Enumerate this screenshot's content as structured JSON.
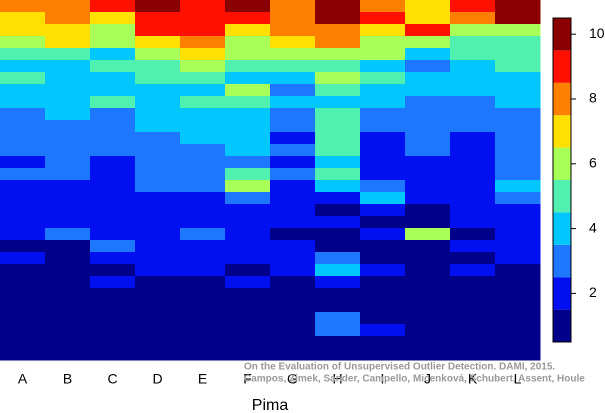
{
  "chart_data": {
    "type": "heatmap",
    "xlabel": "Pima",
    "categories": [
      "A",
      "B",
      "C",
      "D",
      "E",
      "F",
      "G",
      "H",
      "I",
      "J",
      "K",
      "L"
    ],
    "values": [
      [
        8,
        7,
        7,
        6,
        5,
        4,
        5,
        4,
        4,
        3,
        3,
        3,
        3,
        2,
        3,
        2,
        2,
        2,
        2,
        2,
        1,
        2,
        1,
        1,
        1,
        1,
        1,
        1,
        1,
        1
      ],
      [
        8,
        8,
        7,
        7,
        5,
        4,
        4,
        4,
        4,
        4,
        3,
        3,
        3,
        3,
        3,
        2,
        2,
        2,
        2,
        3,
        1,
        1,
        1,
        1,
        1,
        1,
        1,
        1,
        1,
        1
      ],
      [
        9,
        7,
        6,
        6,
        4,
        5,
        4,
        4,
        5,
        3,
        3,
        3,
        3,
        2,
        2,
        2,
        2,
        2,
        2,
        2,
        3,
        2,
        1,
        2,
        1,
        1,
        1,
        1,
        1,
        1
      ],
      [
        10,
        9,
        9,
        7,
        6,
        5,
        5,
        4,
        4,
        4,
        4,
        3,
        3,
        3,
        3,
        3,
        2,
        2,
        2,
        2,
        2,
        2,
        2,
        1,
        1,
        1,
        1,
        1,
        1,
        1
      ],
      [
        9,
        9,
        9,
        8,
        7,
        6,
        5,
        4,
        5,
        4,
        4,
        4,
        3,
        3,
        3,
        3,
        2,
        2,
        2,
        3,
        2,
        2,
        2,
        1,
        1,
        1,
        1,
        1,
        1,
        1
      ],
      [
        10,
        9,
        7,
        6,
        6,
        5,
        4,
        6,
        5,
        4,
        4,
        4,
        4,
        3,
        5,
        6,
        3,
        2,
        2,
        2,
        2,
        2,
        1,
        2,
        1,
        1,
        1,
        1,
        1,
        1
      ],
      [
        8,
        8,
        8,
        7,
        6,
        5,
        4,
        3,
        4,
        3,
        3,
        2,
        3,
        2,
        3,
        2,
        2,
        2,
        2,
        1,
        2,
        2,
        2,
        1,
        1,
        1,
        1,
        1,
        1,
        1
      ],
      [
        10,
        10,
        8,
        8,
        6,
        5,
        6,
        5,
        4,
        5,
        5,
        5,
        5,
        4,
        5,
        4,
        2,
        1,
        2,
        1,
        1,
        3,
        4,
        2,
        1,
        1,
        3,
        3,
        1,
        1
      ],
      [
        8,
        9,
        7,
        6,
        6,
        4,
        5,
        4,
        4,
        3,
        3,
        2,
        2,
        2,
        2,
        3,
        4,
        2,
        1,
        2,
        1,
        1,
        2,
        1,
        1,
        1,
        1,
        2,
        1,
        1
      ],
      [
        7,
        7,
        9,
        6,
        4,
        3,
        4,
        4,
        3,
        3,
        3,
        3,
        3,
        2,
        2,
        2,
        2,
        1,
        1,
        6,
        1,
        1,
        1,
        1,
        1,
        1,
        1,
        1,
        1,
        1
      ],
      [
        9,
        8,
        6,
        5,
        5,
        4,
        4,
        4,
        3,
        3,
        3,
        2,
        2,
        2,
        2,
        2,
        2,
        2,
        2,
        1,
        2,
        1,
        2,
        1,
        1,
        1,
        1,
        1,
        1,
        1
      ],
      [
        10,
        10,
        6,
        5,
        5,
        5,
        4,
        4,
        4,
        3,
        3,
        3,
        3,
        3,
        3,
        4,
        3,
        2,
        2,
        2,
        2,
        2,
        1,
        1,
        1,
        1,
        1,
        1,
        1,
        1
      ]
    ],
    "colors": [
      "#00008b",
      "#0010f0",
      "#1e78ff",
      "#00c8ff",
      "#50f0b0",
      "#a8ff58",
      "#ffe000",
      "#ff8000",
      "#ff1000",
      "#8b0000"
    ],
    "clim": [
      0.5,
      10.5
    ],
    "cticks": [
      2,
      4,
      6,
      8,
      10
    ],
    "annotations": [
      "On the Evaluation of Unsupervised Outlier Detection. DAMI, 2015.",
      "Campos, Zimek, Sander, Campello, Micenková, Schubert, Assent, Houle"
    ]
  }
}
